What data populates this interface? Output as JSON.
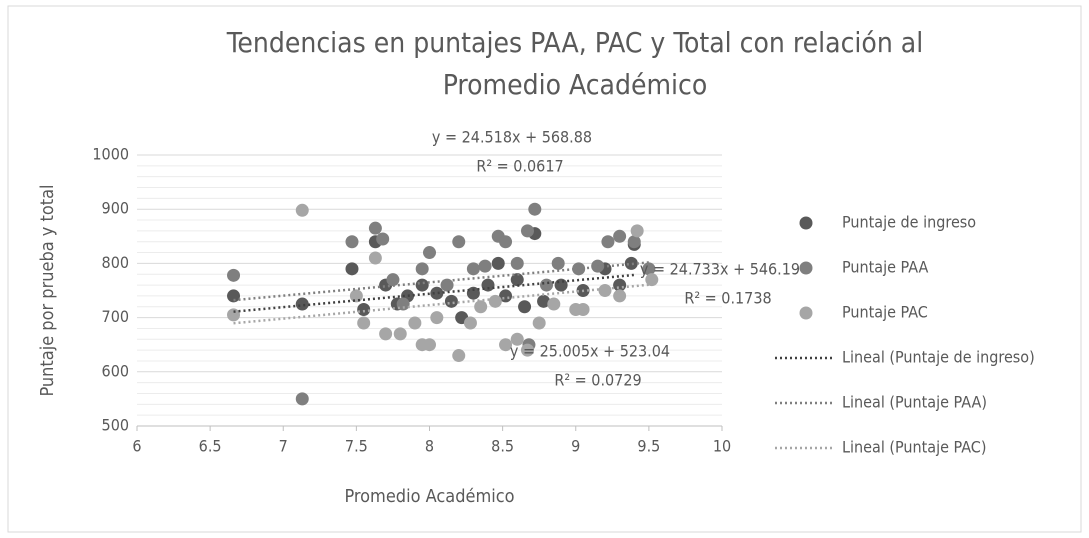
{
  "chart_data": {
    "type": "scatter",
    "title": "Tendencias en puntajes PAA, PAC y Total con relación al Promedio Académico",
    "title_lines": [
      "Tendencias en puntajes PAA, PAC y Total con relación al",
      "Promedio Académico"
    ],
    "xlabel": "Promedio Académico",
    "ylabel": "Puntaje por prueba y total",
    "xlim": [
      6,
      10
    ],
    "xticks": [
      6,
      6.5,
      7,
      7.5,
      8,
      8.5,
      9,
      9.5,
      10
    ],
    "ylim": [
      500,
      1000
    ],
    "yticks": [
      500,
      600,
      700,
      800,
      900,
      1000
    ],
    "y_minor_ticks": [
      520,
      540,
      560,
      580,
      620,
      640,
      660,
      680,
      720,
      740,
      760,
      780,
      820,
      840,
      860,
      880,
      920,
      940,
      960,
      980
    ],
    "grid": true,
    "legend": "right",
    "series": [
      {
        "name": "Puntaje de ingreso",
        "color": "#595959",
        "x": [
          6.66,
          7.13,
          7.47,
          7.55,
          7.63,
          7.7,
          7.78,
          7.85,
          7.95,
          8.05,
          8.15,
          8.22,
          8.3,
          8.4,
          8.47,
          8.52,
          8.6,
          8.65,
          8.72,
          8.78,
          8.9,
          9.05,
          9.2,
          9.3,
          9.38,
          9.4
        ],
        "values": [
          740,
          725,
          790,
          715,
          840,
          760,
          725,
          740,
          760,
          745,
          730,
          700,
          745,
          760,
          800,
          740,
          770,
          720,
          855,
          730,
          760,
          750,
          790,
          760,
          800,
          835
        ],
        "trendline": {
          "name": "Lineal (Puntaje de ingreso)",
          "color": "#404040",
          "slope": 24.733,
          "intercept": 546.19,
          "equation": "y = 24.733x + 546.19",
          "r2_label": "R² = 0.1738"
        }
      },
      {
        "name": "Puntaje PAA",
        "color": "#7f7f7f",
        "x": [
          6.66,
          7.13,
          7.47,
          7.63,
          7.68,
          7.75,
          7.82,
          7.95,
          8.0,
          8.12,
          8.2,
          8.3,
          8.38,
          8.47,
          8.52,
          8.6,
          8.67,
          8.72,
          8.8,
          8.88,
          9.02,
          9.15,
          9.22,
          9.3,
          9.4,
          9.5,
          8.68
        ],
        "values": [
          778,
          550,
          840,
          865,
          845,
          770,
          725,
          790,
          820,
          760,
          840,
          790,
          795,
          850,
          840,
          800,
          860,
          900,
          760,
          800,
          790,
          795,
          840,
          850,
          840,
          790,
          650
        ],
        "trendline": {
          "name": "Lineal (Puntaje PAA)",
          "color": "#7f7f7f",
          "slope": 24.518,
          "intercept": 568.88,
          "equation": "y = 24.518x + 568.88",
          "r2_label": "R² = 0.0617"
        }
      },
      {
        "name": "Puntaje PAC",
        "color": "#a6a6a6",
        "x": [
          6.66,
          7.13,
          7.5,
          7.55,
          7.63,
          7.7,
          7.8,
          7.9,
          7.95,
          8.0,
          8.05,
          8.2,
          8.28,
          8.35,
          8.45,
          8.52,
          8.6,
          8.67,
          8.75,
          8.85,
          9.0,
          9.05,
          9.2,
          9.3,
          9.42,
          9.52
        ],
        "values": [
          705,
          898,
          740,
          690,
          810,
          670,
          670,
          690,
          650,
          650,
          700,
          630,
          690,
          720,
          730,
          650,
          660,
          640,
          690,
          725,
          715,
          715,
          750,
          740,
          860,
          770
        ],
        "trendline": {
          "name": "Lineal (Puntaje PAC)",
          "color": "#a6a6a6",
          "slope": 25.005,
          "intercept": 523.04,
          "equation": "y = 25.005x + 523.04",
          "r2_label": "R² = 0.0729"
        }
      }
    ]
  }
}
